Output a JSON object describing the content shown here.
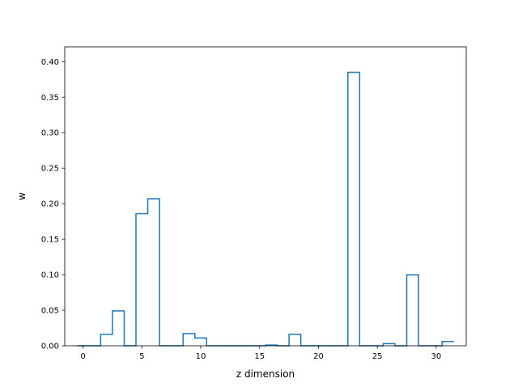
{
  "chart_data": {
    "type": "step",
    "title": "",
    "xlabel": "z dimension",
    "ylabel": "w",
    "xlim": [
      -1.55,
      32.55
    ],
    "ylim": [
      0,
      0.4208
    ],
    "grid": false,
    "legend": "none",
    "line_color": "#1f77b4",
    "x_ticks": [
      0,
      5,
      10,
      15,
      20,
      25,
      30
    ],
    "x_tick_labels": [
      "0",
      "5",
      "10",
      "15",
      "20",
      "25",
      "30"
    ],
    "y_ticks": [
      0,
      0.05,
      0.1,
      0.15,
      0.2,
      0.25,
      0.3,
      0.35,
      0.4
    ],
    "y_tick_labels": [
      "0.00",
      "0.05",
      "0.10",
      "0.15",
      "0.20",
      "0.25",
      "0.30",
      "0.35",
      "0.40"
    ],
    "series": [
      {
        "x": [
          0,
          1,
          2,
          3,
          4,
          5,
          6,
          7,
          8,
          9,
          10,
          11,
          12,
          13,
          14,
          15,
          16,
          17,
          18,
          19,
          20,
          21,
          22,
          23,
          24,
          25,
          26,
          27,
          28,
          29,
          30,
          31
        ],
        "values": [
          0.0,
          0.0,
          0.016,
          0.049,
          0.0,
          0.186,
          0.207,
          0.0,
          0.0,
          0.017,
          0.011,
          0.0,
          0.0,
          0.0,
          0.0,
          0.0,
          0.001,
          0.0,
          0.016,
          0.0,
          0.0,
          0.0,
          0.0,
          0.385,
          0.0,
          0.0,
          0.003,
          0.0,
          0.1,
          0.0,
          0.0,
          0.006
        ]
      }
    ]
  }
}
